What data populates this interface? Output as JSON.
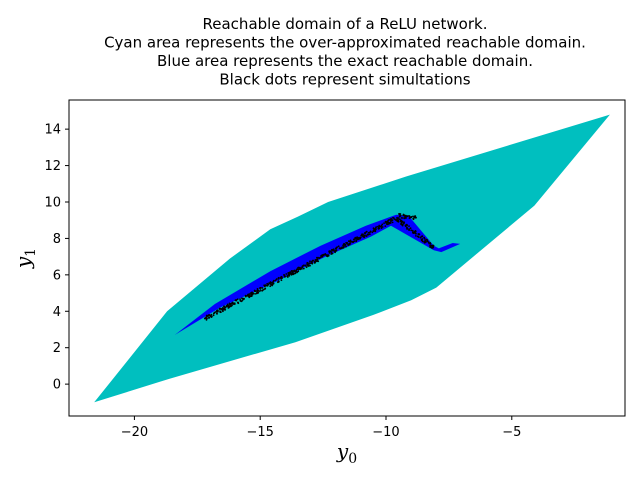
{
  "chart_data": {
    "type": "area",
    "title_lines": [
      "Reachable domain of a ReLU network.",
      "Cyan area represents the over-approximated reachable domain.",
      "Blue area represents the exact reachable domain.",
      "Black dots represent simultations"
    ],
    "xlabel": {
      "base": "y",
      "sub": "0"
    },
    "ylabel": {
      "base": "y",
      "sub": "1"
    },
    "xlim": [
      -22.6,
      -0.5
    ],
    "ylim": [
      -1.75,
      15.6
    ],
    "x_ticks": [
      -20,
      -15,
      -10,
      -5
    ],
    "y_ticks": [
      0,
      2,
      4,
      6,
      8,
      10,
      12,
      14
    ],
    "grid": false,
    "colors": {
      "over_approx": "#00bfbf",
      "exact": "#0000ff",
      "simulations": "#000000"
    },
    "over_approx_polygon": [
      [
        -21.6,
        -1.0
      ],
      [
        -18.6,
        0.3
      ],
      [
        -13.6,
        2.3
      ],
      [
        -10.5,
        3.8
      ],
      [
        -9.0,
        4.6
      ],
      [
        -8.0,
        5.3
      ],
      [
        -4.1,
        9.8
      ],
      [
        -1.1,
        14.8
      ],
      [
        -9.2,
        11.4
      ],
      [
        -12.3,
        10.0
      ],
      [
        -13.5,
        9.2
      ],
      [
        -14.6,
        8.5
      ],
      [
        -16.2,
        6.9
      ],
      [
        -18.7,
        4.0
      ]
    ],
    "exact_polygon": [
      [
        -18.4,
        2.7
      ],
      [
        -16.6,
        4.2
      ],
      [
        -14.4,
        5.6
      ],
      [
        -12.4,
        7.0
      ],
      [
        -10.6,
        8.1
      ],
      [
        -9.8,
        8.7
      ],
      [
        -8.1,
        7.35
      ],
      [
        -7.8,
        7.25
      ],
      [
        -7.05,
        7.7
      ],
      [
        -7.35,
        7.75
      ],
      [
        -7.9,
        7.45
      ],
      [
        -8.1,
        7.6
      ],
      [
        -9.1,
        9.25
      ],
      [
        -9.6,
        9.3
      ],
      [
        -10.8,
        8.7
      ],
      [
        -12.6,
        7.6
      ],
      [
        -14.6,
        6.2
      ],
      [
        -16.8,
        4.4
      ]
    ],
    "simulation_segments": [
      {
        "from": [
          -17.2,
          3.6
        ],
        "to": [
          -9.6,
          9.1
        ]
      },
      {
        "from": [
          -9.6,
          9.1
        ],
        "to": [
          -8.1,
          7.5
        ]
      },
      {
        "from": [
          -9.5,
          9.25
        ],
        "to": [
          -8.8,
          9.1
        ]
      }
    ]
  }
}
